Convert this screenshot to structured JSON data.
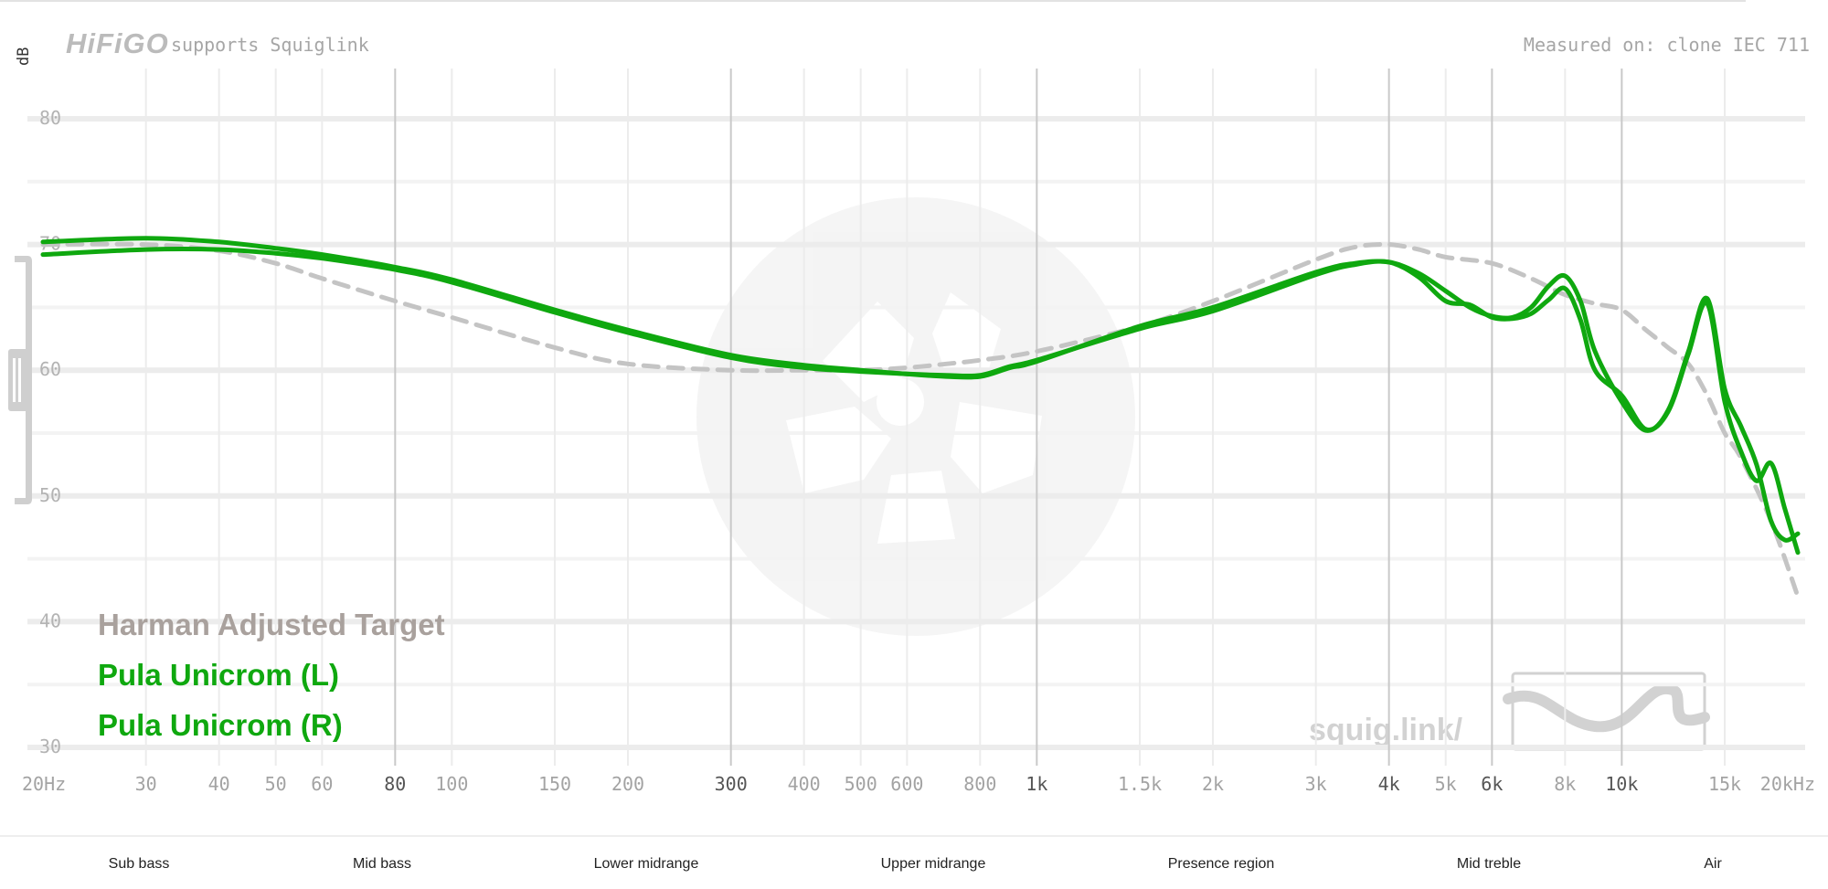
{
  "header": {
    "brand": "HiFiGO",
    "supports_text": "supports Squiglink",
    "measured_text": "Measured on: clone IEC 711",
    "y_unit": "dB",
    "watermark_text": "squig.link/"
  },
  "colors": {
    "target": "#c4c4c4",
    "target_legend": "#a9a19d",
    "curve": "#0fa80f",
    "grid": "#ececec",
    "grid_major": "#c9c9c9"
  },
  "bands": [
    "Sub bass",
    "Mid bass",
    "Lower midrange",
    "Upper midrange",
    "Presence region",
    "Mid treble",
    "Air"
  ],
  "chart_data": {
    "type": "line",
    "xlabel": "",
    "ylabel": "dB",
    "x_scale": "log",
    "xlim": [
      20,
      20000
    ],
    "ylim": [
      29,
      84
    ],
    "x_ticks": [
      {
        "value": 20,
        "label": "20Hz",
        "major": false
      },
      {
        "value": 30,
        "label": "30",
        "major": false
      },
      {
        "value": 40,
        "label": "40",
        "major": false
      },
      {
        "value": 50,
        "label": "50",
        "major": false
      },
      {
        "value": 60,
        "label": "60",
        "major": false
      },
      {
        "value": 80,
        "label": "80",
        "major": true
      },
      {
        "value": 100,
        "label": "100",
        "major": false
      },
      {
        "value": 150,
        "label": "150",
        "major": false
      },
      {
        "value": 200,
        "label": "200",
        "major": false
      },
      {
        "value": 300,
        "label": "300",
        "major": true
      },
      {
        "value": 400,
        "label": "400",
        "major": false
      },
      {
        "value": 500,
        "label": "500",
        "major": false
      },
      {
        "value": 600,
        "label": "600",
        "major": false
      },
      {
        "value": 800,
        "label": "800",
        "major": false
      },
      {
        "value": 1000,
        "label": "1k",
        "major": true
      },
      {
        "value": 1500,
        "label": "1.5k",
        "major": false
      },
      {
        "value": 2000,
        "label": "2k",
        "major": false
      },
      {
        "value": 3000,
        "label": "3k",
        "major": false
      },
      {
        "value": 4000,
        "label": "4k",
        "major": true
      },
      {
        "value": 5000,
        "label": "5k",
        "major": false
      },
      {
        "value": 6000,
        "label": "6k",
        "major": true
      },
      {
        "value": 8000,
        "label": "8k",
        "major": false
      },
      {
        "value": 10000,
        "label": "10k",
        "major": true
      },
      {
        "value": 15000,
        "label": "15k",
        "major": false
      },
      {
        "value": 20000,
        "label": "20kHz",
        "major": false
      }
    ],
    "y_ticks": [
      {
        "value": 30,
        "label": "30"
      },
      {
        "value": 40,
        "label": "40"
      },
      {
        "value": 50,
        "label": "50"
      },
      {
        "value": 60,
        "label": "60"
      },
      {
        "value": 70,
        "label": "70"
      },
      {
        "value": 80,
        "label": "80"
      }
    ],
    "series": [
      {
        "name": "Harman Adjusted Target",
        "style": "dashed",
        "x": [
          20,
          30,
          40,
          50,
          60,
          80,
          100,
          150,
          200,
          300,
          400,
          500,
          600,
          700,
          800,
          1000,
          1500,
          2000,
          3000,
          3500,
          4000,
          4500,
          5000,
          6000,
          7000,
          8000,
          9000,
          10000,
          11000,
          12000,
          13000,
          14000,
          15000,
          16000,
          18000,
          20000
        ],
        "y": [
          70,
          70,
          69.5,
          68.5,
          67.3,
          65.5,
          64.2,
          61.8,
          60.5,
          60,
          60,
          60,
          60.2,
          60.5,
          60.8,
          61.5,
          63.5,
          65.5,
          68.8,
          69.8,
          70,
          69.6,
          69,
          68.5,
          67.3,
          66,
          65.3,
          64.8,
          63.2,
          61.8,
          60.5,
          58,
          55,
          53,
          48,
          42
        ]
      },
      {
        "name": "Pula Unicrom (L)",
        "style": "solid",
        "x": [
          20,
          30,
          40,
          50,
          60,
          80,
          100,
          150,
          200,
          300,
          400,
          500,
          600,
          700,
          800,
          900,
          1000,
          1500,
          2000,
          3000,
          3500,
          4000,
          4500,
          5000,
          5500,
          6000,
          6500,
          7000,
          7500,
          8000,
          8500,
          9000,
          10000,
          11000,
          12000,
          13000,
          14000,
          15000,
          16000,
          17000,
          18000,
          19000,
          20000
        ],
        "y": [
          70.2,
          70.5,
          70.2,
          69.7,
          69.2,
          68.2,
          67.2,
          64.8,
          63.2,
          61.2,
          60.4,
          60,
          59.7,
          59.5,
          59.5,
          60.2,
          60.7,
          63.5,
          65,
          67.8,
          68.5,
          68.6,
          67.7,
          66.3,
          65,
          64.3,
          64.2,
          65,
          66.7,
          67.5,
          65.5,
          61.5,
          57.5,
          55.2,
          56.8,
          61.5,
          65.7,
          58.5,
          55.5,
          52.5,
          48,
          46.5,
          47
        ]
      },
      {
        "name": "Pula Unicrom (R)",
        "style": "solid",
        "x": [
          20,
          30,
          40,
          50,
          60,
          80,
          100,
          150,
          200,
          300,
          400,
          500,
          600,
          700,
          800,
          900,
          1000,
          1500,
          2000,
          3000,
          3500,
          4000,
          4500,
          5000,
          5500,
          6000,
          6500,
          7000,
          7500,
          8000,
          8500,
          9000,
          10000,
          11000,
          12000,
          13000,
          14000,
          15000,
          16000,
          17000,
          18000,
          19000,
          20000
        ],
        "y": [
          69.2,
          69.6,
          69.6,
          69.3,
          68.9,
          68,
          67,
          64.6,
          63,
          61,
          60.2,
          59.9,
          59.7,
          59.6,
          59.6,
          60.3,
          60.8,
          63.3,
          64.7,
          67.6,
          68.4,
          68.6,
          67.4,
          65.5,
          65.2,
          64.2,
          64.1,
          64.5,
          65.6,
          66.5,
          64,
          60,
          58,
          55.3,
          56.7,
          61.3,
          65.3,
          57.5,
          53.5,
          51.2,
          52.6,
          49,
          45.5
        ]
      }
    ]
  }
}
